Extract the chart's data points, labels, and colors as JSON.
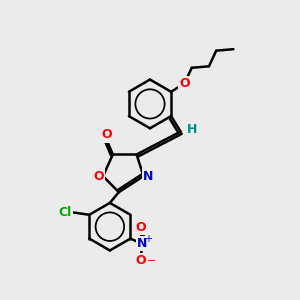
{
  "bg_color": "#ebebeb",
  "bond_color": "#000000",
  "bond_width": 1.8,
  "atom_colors": {
    "O": "#ff0000",
    "N": "#0000cc",
    "Cl": "#00aa00",
    "C": "#000000",
    "H": "#008b8b"
  },
  "font_size": 9,
  "font_size_small": 7
}
